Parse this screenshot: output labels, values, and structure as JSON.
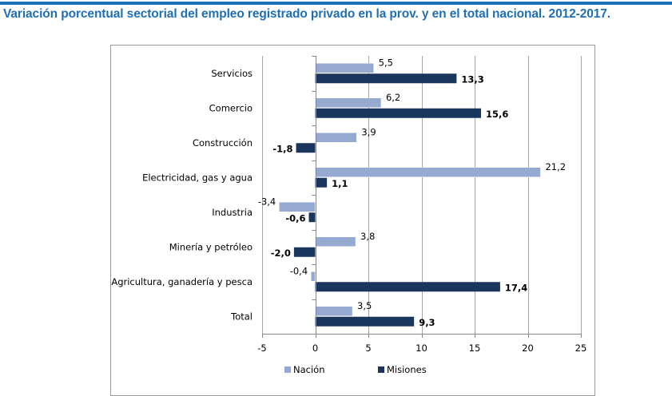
{
  "header": {
    "title": "Variación porcentual sectorial del empleo registrado privado en la prov. y en el total nacional. 2012-2017."
  },
  "chart_data": {
    "type": "bar",
    "orientation": "horizontal",
    "title": "Variación porcentual sectorial del empleo registrado privado en la prov. y en el total nacional. 2012-2017.",
    "categories": [
      "Servicios",
      "Comercio",
      "Construcción",
      "Electricidad, gas y agua",
      "Industria",
      "Minería y petróleo",
      "Agricultura, ganadería y pesca",
      "Total"
    ],
    "series": [
      {
        "name": "Nación",
        "color": "#95a9d1",
        "values": [
          5.5,
          6.2,
          3.9,
          21.2,
          -3.4,
          3.8,
          -0.4,
          3.5
        ],
        "labels": [
          "5,5",
          "6,2",
          "3,9",
          "21,2",
          "-3,4",
          "3,8",
          "-0,4",
          "3,5"
        ],
        "label_bold": false
      },
      {
        "name": "Misiones",
        "color": "#1b365d",
        "values": [
          13.3,
          15.6,
          -1.8,
          1.1,
          -0.6,
          -2.0,
          17.4,
          9.3
        ],
        "labels": [
          "13,3",
          "15,6",
          "-1,8",
          "1,1",
          "-0,6",
          "-2,0",
          "17,4",
          "9,3"
        ],
        "label_bold": true
      }
    ],
    "xlim": [
      -5,
      25
    ],
    "xticks": [
      -5,
      0,
      5,
      10,
      15,
      20,
      25
    ],
    "xtick_labels": [
      "-5",
      "0",
      "5",
      "10",
      "15",
      "20",
      "25"
    ],
    "xlabel": "",
    "ylabel": "",
    "grid": "vertical major gridlines",
    "legend": {
      "position": "bottom",
      "entries": [
        "Nación",
        "Misiones"
      ]
    }
  }
}
